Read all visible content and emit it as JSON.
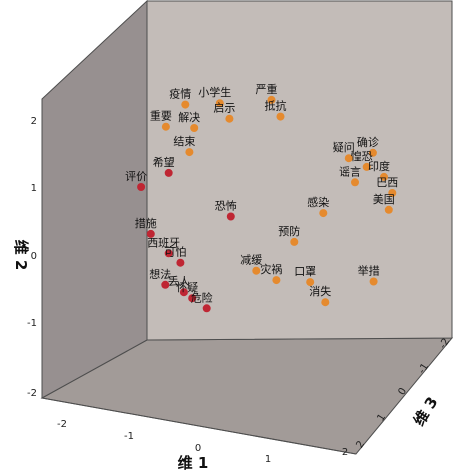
{
  "chart_data": {
    "type": "scatter",
    "xlabel": "维 1",
    "ylabel": "维 2",
    "zlabel": "维 3",
    "axes": {
      "x_ticks": [
        "-2",
        "-1",
        "0",
        "1",
        "2"
      ],
      "y_ticks": [
        "2",
        "1",
        "0",
        "-1",
        "-2"
      ],
      "z_ticks": [
        "2",
        "1",
        "0",
        "-1",
        "-2"
      ]
    },
    "colors": {
      "back_wall": "#c3bcb8",
      "side_wall": "#979090",
      "floor": "#a29b98",
      "series_orange": "#e58a2e",
      "series_red": "#bf2633"
    },
    "points": [
      {
        "label": "疫情",
        "color": "orange",
        "x": -0.17,
        "y": 2.26
      },
      {
        "label": "小学生",
        "color": "orange",
        "x": 0.33,
        "y": 2.28
      },
      {
        "label": "严重",
        "color": "orange",
        "x": 1.08,
        "y": 2.33
      },
      {
        "label": "启示",
        "color": "orange",
        "x": 0.47,
        "y": 2.05
      },
      {
        "label": "抵抗",
        "color": "orange",
        "x": 1.21,
        "y": 2.08
      },
      {
        "label": "重要",
        "color": "orange",
        "x": -0.45,
        "y": 1.93
      },
      {
        "label": "解决",
        "color": "orange",
        "x": -0.04,
        "y": 1.91
      },
      {
        "label": "结束",
        "color": "orange",
        "x": -0.11,
        "y": 1.55
      },
      {
        "label": "疑问",
        "color": "orange",
        "x": 2.2,
        "y": 1.46
      },
      {
        "label": "确诊",
        "color": "orange",
        "x": 2.55,
        "y": 1.54
      },
      {
        "label": "惶恐",
        "color": "orange",
        "x": 2.46,
        "y": 1.33
      },
      {
        "label": "印度",
        "color": "orange",
        "x": 2.71,
        "y": 1.18
      },
      {
        "label": "谣言",
        "color": "orange",
        "x": 2.29,
        "y": 1.1
      },
      {
        "label": "巴西",
        "color": "orange",
        "x": 2.83,
        "y": 0.94
      },
      {
        "label": "美国",
        "color": "orange",
        "x": 2.78,
        "y": 0.69
      },
      {
        "label": "评价",
        "color": "red",
        "x": -0.81,
        "y": 1.03
      },
      {
        "label": "希望",
        "color": "red",
        "x": -0.41,
        "y": 1.24
      },
      {
        "label": "恐怖",
        "color": "red",
        "x": 0.49,
        "y": 0.59
      },
      {
        "label": "感染",
        "color": "orange",
        "x": 1.83,
        "y": 0.64
      },
      {
        "label": "措施",
        "color": "red",
        "x": -0.67,
        "y": 0.33
      },
      {
        "label": "预防",
        "color": "orange",
        "x": 1.41,
        "y": 0.21
      },
      {
        "label": "西班牙",
        "color": "red",
        "x": -0.41,
        "y": 0.04
      },
      {
        "label": "减缓",
        "color": "orange",
        "x": 0.86,
        "y": -0.22
      },
      {
        "label": "灾祸",
        "color": "orange",
        "x": 1.15,
        "y": -0.36
      },
      {
        "label": "举措",
        "color": "orange",
        "x": 2.56,
        "y": -0.38
      },
      {
        "label": "可怕",
        "color": "red",
        "x": -0.24,
        "y": -0.1
      },
      {
        "label": "想法",
        "color": "red",
        "x": -0.46,
        "y": -0.43
      },
      {
        "label": "口罩",
        "color": "orange",
        "x": 1.64,
        "y": -0.39
      },
      {
        "label": "丢人",
        "color": "red",
        "x": -0.19,
        "y": -0.54
      },
      {
        "label": "怀疑",
        "color": "red",
        "x": -0.07,
        "y": -0.63
      },
      {
        "label": "消失",
        "color": "orange",
        "x": 1.86,
        "y": -0.69
      },
      {
        "label": "危险",
        "color": "red",
        "x": 0.14,
        "y": -0.78
      }
    ]
  }
}
